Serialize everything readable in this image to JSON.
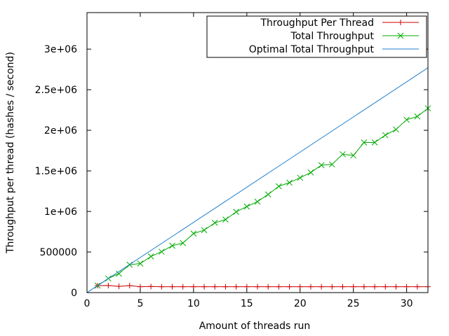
{
  "chart_data": {
    "type": "line",
    "title": "",
    "xlabel": "Amount of threads run",
    "ylabel": "Throughput per thread (hashes / second)",
    "xlim": [
      0,
      32
    ],
    "ylim": [
      0,
      3450000
    ],
    "xticks": [
      0,
      5,
      10,
      15,
      20,
      25,
      30
    ],
    "xtick_labels": [
      "0",
      "5",
      "10",
      "15",
      "20",
      "25",
      "30"
    ],
    "yticks": [
      0,
      500000,
      1000000,
      1500000,
      2000000,
      2500000,
      3000000
    ],
    "ytick_labels": [
      "0",
      "500000",
      "1e+06",
      "1.5e+06",
      "2e+06",
      "2.5e+06",
      "3e+06"
    ],
    "grid": false,
    "legend_position": "top-right",
    "series": [
      {
        "name": "Throughput Per Thread",
        "color": "#cc0000",
        "marker": "plus",
        "x": [
          1,
          2,
          3,
          4,
          5,
          6,
          7,
          8,
          9,
          10,
          11,
          12,
          13,
          14,
          15,
          16,
          17,
          18,
          19,
          20,
          21,
          22,
          23,
          24,
          25,
          26,
          27,
          28,
          29,
          30,
          31,
          32
        ],
        "y": [
          86000,
          87000,
          77000,
          86000,
          72000,
          75000,
          72000,
          72000,
          72000,
          72000,
          72000,
          72000,
          72000,
          72000,
          72000,
          72000,
          72000,
          72000,
          72000,
          72000,
          72000,
          72000,
          72000,
          72000,
          72000,
          72000,
          72000,
          72000,
          72000,
          72000,
          72000,
          72000
        ]
      },
      {
        "name": "Total Throughput",
        "color": "#00aa00",
        "marker": "x",
        "x": [
          1,
          2,
          3,
          4,
          5,
          6,
          7,
          8,
          9,
          10,
          11,
          12,
          13,
          14,
          15,
          16,
          17,
          18,
          19,
          20,
          21,
          22,
          23,
          24,
          25,
          26,
          27,
          28,
          29,
          30,
          31,
          32
        ],
        "y": [
          86000,
          174000,
          234000,
          344000,
          358000,
          445000,
          504000,
          578000,
          610000,
          728000,
          770000,
          860000,
          900000,
          995000,
          1060000,
          1120000,
          1210000,
          1310000,
          1355000,
          1415000,
          1480000,
          1570000,
          1580000,
          1705000,
          1690000,
          1850000,
          1850000,
          1940000,
          2010000,
          2130000,
          2170000,
          2270000
        ]
      },
      {
        "name": "Optimal Total Throughput",
        "color": "#1f7fcf",
        "marker": "none",
        "x": [
          0,
          32
        ],
        "y": [
          0,
          2770000
        ]
      }
    ]
  }
}
